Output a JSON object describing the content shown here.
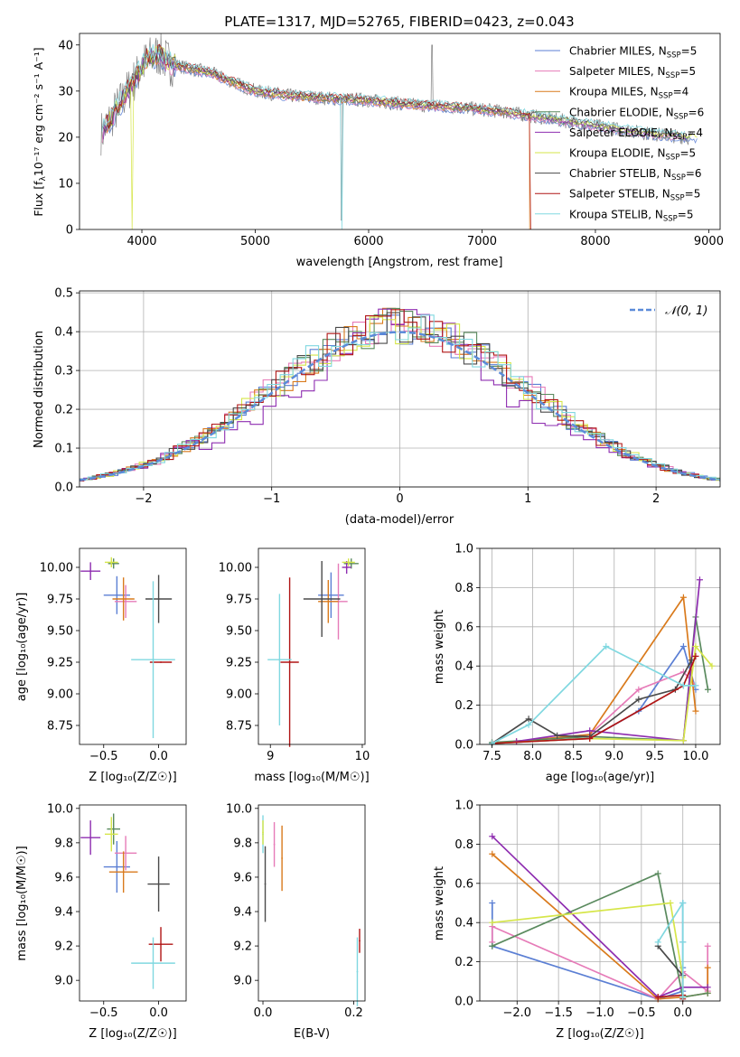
{
  "chart_data": [
    {
      "id": "spectrum",
      "type": "line",
      "title": "PLATE=1317, MJD=52765, FIBERID=0423, z=0.043",
      "xlabel": "wavelength [Angstrom, rest frame]",
      "ylabel_main": "Flux [f",
      "ylabel_sub": "λ",
      "ylabel_rest": "10⁻¹⁷ erg cm⁻² s⁻¹ A⁻¹]",
      "xlim": [
        3450,
        9100
      ],
      "ylim": [
        0,
        42.5
      ],
      "xticks": [
        4000,
        5000,
        6000,
        7000,
        8000,
        9000
      ],
      "yticks": [
        0,
        10,
        20,
        30,
        40
      ],
      "grid": false,
      "legend_position": "top-right",
      "legend": [
        {
          "label": "Chabrier MILES, N",
          "sub": "SSP",
          "suffix": "=5",
          "color": "#5b7fd4"
        },
        {
          "label": "Salpeter MILES, N",
          "sub": "SSP",
          "suffix": "=5",
          "color": "#e67bb8"
        },
        {
          "label": "Kroupa MILES, N",
          "sub": "SSP",
          "suffix": "=4",
          "color": "#d97a1c"
        },
        {
          "label": "Chabrier ELODIE, N",
          "sub": "SSP",
          "suffix": "=6",
          "color": "#5a8a5e"
        },
        {
          "label": "Salpeter ELODIE, N",
          "sub": "SSP",
          "suffix": "=4",
          "color": "#8e2db0"
        },
        {
          "label": "Kroupa ELODIE, N",
          "sub": "SSP",
          "suffix": "=5",
          "color": "#d6e64a"
        },
        {
          "label": "Chabrier STELIB, N",
          "sub": "SSP",
          "suffix": "=6",
          "color": "#4a4a4a"
        },
        {
          "label": "Salpeter STELIB, N",
          "sub": "SSP",
          "suffix": "=5",
          "color": "#b01515"
        },
        {
          "label": "Kroupa STELIB, N",
          "sub": "SSP",
          "suffix": "=5",
          "color": "#80d8e0"
        }
      ],
      "data_series_color": "#808080",
      "continuum": {
        "x": [
          3650,
          3750,
          3850,
          3950,
          4050,
          4150,
          4250,
          4400,
          4600,
          4800,
          5000,
          5300,
          5600,
          6000,
          6400,
          6800,
          7200,
          7600,
          8000,
          8400,
          8800
        ],
        "y": [
          21,
          25,
          29,
          33,
          37,
          38,
          36,
          35,
          34,
          32,
          30,
          29,
          28.5,
          28,
          27,
          26.5,
          25.5,
          24,
          22.5,
          21,
          20
        ]
      }
    },
    {
      "id": "residuals",
      "type": "histogram",
      "xlabel": "(data-model)/error",
      "ylabel": "Normed distribution",
      "xlim": [
        -2.5,
        2.5
      ],
      "ylim": [
        0,
        0.505
      ],
      "xticks": [
        -2,
        -1,
        0,
        1,
        2
      ],
      "yticks": [
        0.0,
        0.1,
        0.2,
        0.3,
        0.4,
        0.5
      ],
      "grid": true,
      "legend_position": "top-right",
      "legend_label": "𝒩(0, 1)",
      "gaussian_color": "#5b8bd9"
    },
    {
      "id": "age-vs-Z",
      "type": "errorbar",
      "xlabel": "Z [log₁₀(Z/Z☉)]",
      "ylabel": "age  [log₁₀(age/yr)]",
      "xlim": [
        -0.72,
        0.25
      ],
      "ylim": [
        8.6,
        10.15
      ],
      "xticks": [
        -0.5,
        0.0
      ],
      "yticks": [
        8.75,
        9.0,
        9.25,
        9.5,
        9.75,
        10.0
      ],
      "points": [
        {
          "x": -0.38,
          "xerr": 0.12,
          "y": 9.78,
          "yerr": 0.15,
          "color": "#5b7fd4"
        },
        {
          "x": -0.3,
          "xerr": 0.1,
          "y": 9.73,
          "yerr": 0.13,
          "color": "#e67bb8"
        },
        {
          "x": -0.32,
          "xerr": 0.1,
          "y": 9.75,
          "yerr": 0.17,
          "color": "#d97a1c"
        },
        {
          "x": -0.41,
          "xerr": 0.05,
          "y": 10.03,
          "yerr": 0.04,
          "color": "#5a8a5e"
        },
        {
          "x": -0.62,
          "xerr": 0.09,
          "y": 9.97,
          "yerr": 0.07,
          "color": "#8e2db0"
        },
        {
          "x": -0.43,
          "xerr": 0.06,
          "y": 10.04,
          "yerr": 0.04,
          "color": "#d6e64a"
        },
        {
          "x": 0.0,
          "xerr": 0.12,
          "y": 9.75,
          "yerr": 0.19,
          "color": "#4a4a4a"
        },
        {
          "x": 0.02,
          "xerr": 0.1,
          "y": 9.25,
          "yerr": 0.0,
          "color": "#b01515"
        },
        {
          "x": -0.05,
          "xerr": 0.2,
          "y": 9.27,
          "yerr": 0.62,
          "color": "#80d8e0"
        }
      ]
    },
    {
      "id": "age-vs-mass",
      "type": "errorbar",
      "xlabel": "mass [log₁₀(M/M☉)]",
      "ylabel": "",
      "xlim": [
        8.87,
        10.03
      ],
      "ylim": [
        8.6,
        10.15
      ],
      "xticks": [
        9,
        10
      ],
      "yticks": [
        8.75,
        9.0,
        9.25,
        9.5,
        9.75,
        10.0
      ],
      "points": [
        {
          "x": 9.66,
          "xerr": 0.14,
          "y": 9.78,
          "yerr": 0.18,
          "color": "#5b7fd4"
        },
        {
          "x": 9.74,
          "xerr": 0.1,
          "y": 9.73,
          "yerr": 0.3,
          "color": "#e67bb8"
        },
        {
          "x": 9.63,
          "xerr": 0.11,
          "y": 9.73,
          "yerr": 0.17,
          "color": "#d97a1c"
        },
        {
          "x": 9.88,
          "xerr": 0.08,
          "y": 10.03,
          "yerr": 0.04,
          "color": "#5a8a5e"
        },
        {
          "x": 9.83,
          "xerr": 0.05,
          "y": 10.0,
          "yerr": 0.05,
          "color": "#8e2db0"
        },
        {
          "x": 9.85,
          "xerr": 0.07,
          "y": 10.04,
          "yerr": 0.03,
          "color": "#d6e64a"
        },
        {
          "x": 9.56,
          "xerr": 0.2,
          "y": 9.75,
          "yerr": 0.3,
          "color": "#4a4a4a"
        },
        {
          "x": 9.21,
          "xerr": 0.1,
          "y": 9.25,
          "yerr": 0.67,
          "color": "#b01515"
        },
        {
          "x": 9.1,
          "xerr": 0.13,
          "y": 9.27,
          "yerr": 0.52,
          "color": "#80d8e0"
        }
      ]
    },
    {
      "id": "mass-weight-vs-age",
      "type": "line",
      "xlabel": "age  [log₁₀(age/yr)]",
      "ylabel": "mass weight",
      "xlim": [
        7.35,
        10.3
      ],
      "ylim": [
        0,
        1.0
      ],
      "xticks": [
        7.5,
        8.0,
        8.5,
        9.0,
        9.5,
        10.0
      ],
      "yticks": [
        0.0,
        0.2,
        0.4,
        0.6,
        0.8,
        1.0
      ],
      "grid": true,
      "series": [
        {
          "color": "#5b7fd4",
          "x": [
            7.5,
            8.7,
            9.3,
            9.85,
            10.0
          ],
          "y": [
            0.005,
            0.03,
            0.17,
            0.5,
            0.28
          ]
        },
        {
          "color": "#e67bb8",
          "x": [
            7.8,
            8.7,
            9.3,
            9.85,
            10.0
          ],
          "y": [
            0.015,
            0.05,
            0.28,
            0.37,
            0.3
          ]
        },
        {
          "color": "#d97a1c",
          "x": [
            7.8,
            8.7,
            9.85,
            10.0
          ],
          "y": [
            0.015,
            0.05,
            0.75,
            0.17
          ]
        },
        {
          "color": "#5a8a5e",
          "x": [
            7.5,
            8.7,
            9.85,
            10.0,
            10.15
          ],
          "y": [
            0.01,
            0.04,
            0.02,
            0.65,
            0.28
          ]
        },
        {
          "color": "#8e2db0",
          "x": [
            7.8,
            8.7,
            9.85,
            10.05
          ],
          "y": [
            0.015,
            0.07,
            0.02,
            0.84
          ]
        },
        {
          "color": "#d6e64a",
          "x": [
            7.5,
            8.7,
            9.85,
            10.0,
            10.2
          ],
          "y": [
            0.005,
            0.03,
            0.02,
            0.5,
            0.4
          ]
        },
        {
          "color": "#4a4a4a",
          "x": [
            7.5,
            7.95,
            8.3,
            8.7,
            9.3,
            9.75,
            9.95
          ],
          "y": [
            0.005,
            0.13,
            0.045,
            0.04,
            0.23,
            0.28,
            0.43
          ]
        },
        {
          "color": "#b01515",
          "x": [
            7.5,
            8.7,
            9.85,
            10.0
          ],
          "y": [
            0.005,
            0.03,
            0.3,
            0.45
          ]
        },
        {
          "color": "#80d8e0",
          "x": [
            7.5,
            7.95,
            8.9,
            9.85,
            10.0
          ],
          "y": [
            0.005,
            0.1,
            0.5,
            0.3,
            0.3
          ]
        }
      ]
    },
    {
      "id": "mass-vs-Z",
      "type": "errorbar",
      "xlabel": "Z [log₁₀(Z/Z☉)]",
      "ylabel": "mass [log₁₀(M/M☉)]",
      "xlim": [
        -0.72,
        0.25
      ],
      "ylim": [
        8.88,
        10.02
      ],
      "xticks": [
        -0.5,
        0.0
      ],
      "yticks": [
        9.0,
        9.2,
        9.4,
        9.6,
        9.8,
        10.0
      ],
      "points": [
        {
          "x": -0.38,
          "xerr": 0.12,
          "y": 9.66,
          "yerr": 0.15,
          "color": "#5b7fd4"
        },
        {
          "x": -0.3,
          "xerr": 0.1,
          "y": 9.74,
          "yerr": 0.1,
          "color": "#e67bb8"
        },
        {
          "x": -0.32,
          "xerr": 0.13,
          "y": 9.63,
          "yerr": 0.12,
          "color": "#d97a1c"
        },
        {
          "x": -0.41,
          "xerr": 0.06,
          "y": 9.88,
          "yerr": 0.09,
          "color": "#5a8a5e"
        },
        {
          "x": -0.62,
          "xerr": 0.09,
          "y": 9.83,
          "yerr": 0.1,
          "color": "#8e2db0"
        },
        {
          "x": -0.43,
          "xerr": 0.06,
          "y": 9.85,
          "yerr": 0.1,
          "color": "#d6e64a"
        },
        {
          "x": 0.0,
          "xerr": 0.1,
          "y": 9.56,
          "yerr": 0.16,
          "color": "#4a4a4a"
        },
        {
          "x": 0.02,
          "xerr": 0.11,
          "y": 9.21,
          "yerr": 0.1,
          "color": "#b01515"
        },
        {
          "x": -0.05,
          "xerr": 0.2,
          "y": 9.1,
          "yerr": 0.15,
          "color": "#80d8e0"
        }
      ]
    },
    {
      "id": "mass-vs-ebv",
      "type": "errorbar",
      "xlabel": "E(B-V)",
      "ylabel": "",
      "xlim": [
        -0.01,
        0.225
      ],
      "ylim": [
        8.88,
        10.02
      ],
      "xticks": [
        0.0,
        0.2
      ],
      "yticks": [
        9.0,
        9.2,
        9.4,
        9.6,
        9.8,
        10.0
      ],
      "points": [
        {
          "x": 0.0,
          "xerr": 0,
          "y": 9.85,
          "yerr": 0.11,
          "color": "#80d8e0"
        },
        {
          "x": 0.0,
          "xerr": 0,
          "y": 9.86,
          "yerr": 0.07,
          "color": "#d6e64a"
        },
        {
          "x": 0.005,
          "xerr": 0,
          "y": 9.56,
          "yerr": 0.22,
          "color": "#4a4a4a"
        },
        {
          "x": 0.025,
          "xerr": 0,
          "y": 9.79,
          "yerr": 0.13,
          "color": "#e67bb8"
        },
        {
          "x": 0.042,
          "xerr": 0,
          "y": 9.71,
          "yerr": 0.19,
          "color": "#d97a1c"
        },
        {
          "x": 0.213,
          "xerr": 0,
          "y": 9.23,
          "yerr": 0.07,
          "color": "#b01515"
        },
        {
          "x": 0.208,
          "xerr": 0,
          "y": 9.05,
          "yerr": 0.2,
          "color": "#80d8e0"
        }
      ]
    },
    {
      "id": "mass-weight-vs-Z",
      "type": "line",
      "xlabel": "Z [log₁₀(Z/Z☉)]",
      "ylabel": "mass weight",
      "xlim": [
        -2.45,
        0.45
      ],
      "ylim": [
        0,
        1.0
      ],
      "xticks": [
        -2.0,
        -1.5,
        -1.0,
        -0.5,
        0.0
      ],
      "yticks": [
        0.0,
        0.2,
        0.4,
        0.6,
        0.8,
        1.0
      ],
      "grid": true,
      "series": [
        {
          "color": "#5b7fd4",
          "x": [
            -2.3,
            -2.3,
            -0.3,
            0.0,
            0.0,
            0.0,
            0.0
          ],
          "y": [
            0.5,
            0.28,
            0.01,
            0.05,
            0.17,
            0.3,
            0.5
          ]
        },
        {
          "color": "#e67bb8",
          "x": [
            -2.3,
            -2.3,
            -0.3,
            0.0,
            0.3,
            0.3
          ],
          "y": [
            0.3,
            0.38,
            0.01,
            0.15,
            0.05,
            0.28
          ]
        },
        {
          "color": "#d97a1c",
          "x": [
            -2.3,
            -0.3,
            0.0,
            0.3,
            0.3
          ],
          "y": [
            0.75,
            0.01,
            0.02,
            0.04,
            0.17
          ]
        },
        {
          "color": "#5a8a5e",
          "x": [
            -2.3,
            -0.3,
            0.0,
            0.3
          ],
          "y": [
            0.28,
            0.65,
            0.02,
            0.04
          ]
        },
        {
          "color": "#8e2db0",
          "x": [
            -2.3,
            -0.3,
            0.0,
            0.3
          ],
          "y": [
            0.84,
            0.02,
            0.07,
            0.07
          ]
        },
        {
          "color": "#d6e64a",
          "x": [
            -2.3,
            -0.15,
            0.0,
            0.0
          ],
          "y": [
            0.4,
            0.5,
            0.12,
            0.02
          ]
        },
        {
          "color": "#4a4a4a",
          "x": [
            -0.3,
            0.0,
            0.0
          ],
          "y": [
            0.28,
            0.13,
            0.02
          ]
        },
        {
          "color": "#b01515",
          "x": [
            -0.3,
            0.0,
            0.0
          ],
          "y": [
            0.02,
            0.03,
            0.01
          ]
        },
        {
          "color": "#80d8e0",
          "x": [
            -0.3,
            0.0,
            0.0,
            0.0
          ],
          "y": [
            0.3,
            0.5,
            0.3,
            0.02
          ]
        }
      ]
    }
  ]
}
